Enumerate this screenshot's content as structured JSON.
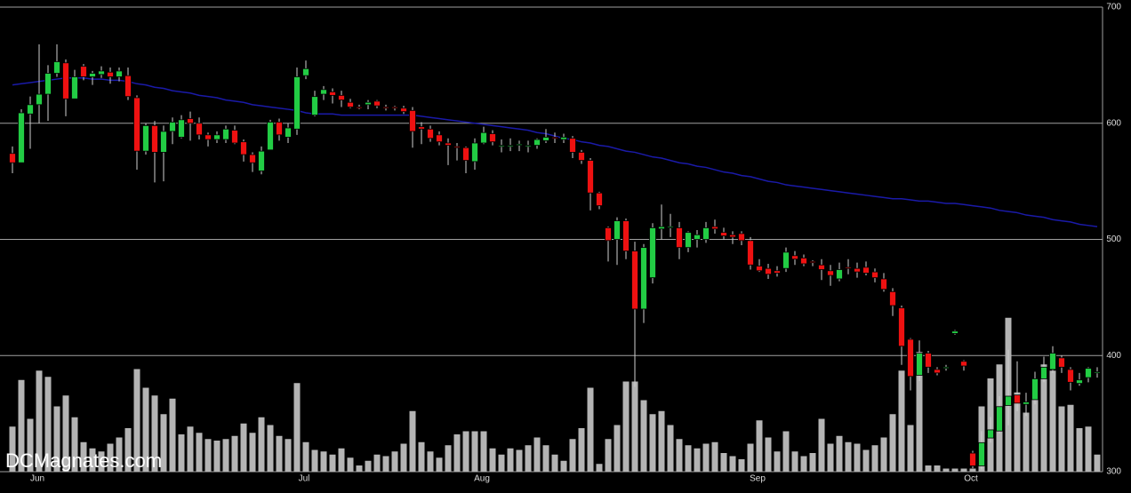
{
  "chart_data": {
    "type": "candlestick",
    "categories": [
      null,
      null,
      null,
      "Jun",
      null,
      null,
      null,
      null,
      null,
      null,
      null,
      null,
      null,
      null,
      null,
      null,
      null,
      null,
      null,
      null,
      null,
      null,
      null,
      null,
      null,
      null,
      null,
      null,
      null,
      null,
      null,
      null,
      null,
      "Jul",
      null,
      null,
      null,
      null,
      null,
      null,
      null,
      null,
      null,
      null,
      null,
      null,
      null,
      null,
      null,
      null,
      null,
      null,
      null,
      "Aug",
      null,
      null,
      null,
      null,
      null,
      null,
      null,
      null,
      null,
      null,
      null,
      null,
      null,
      null,
      null,
      null,
      null,
      null,
      null,
      null,
      null,
      null,
      null,
      null,
      null,
      null,
      null,
      null,
      null,
      null,
      "Sep",
      null,
      null,
      null,
      null,
      null,
      null,
      null,
      null,
      null,
      null,
      null,
      null,
      null,
      null,
      null,
      null,
      null,
      null,
      null,
      null,
      null,
      null,
      null,
      "Oct",
      null,
      null,
      null,
      null,
      null,
      null,
      null,
      null,
      null,
      null,
      null,
      null,
      null,
      null
    ],
    "open": [
      574,
      566,
      608,
      616,
      625,
      643,
      652,
      621,
      649,
      640,
      642,
      644,
      640,
      641,
      622,
      576,
      598,
      575,
      593,
      588,
      604,
      600,
      590,
      586,
      586,
      594,
      584,
      573,
      559,
      577,
      601,
      588,
      595,
      641,
      607,
      625,
      627,
      624,
      618,
      614,
      616,
      619,
      614,
      614,
      613,
      611,
      597,
      595,
      590,
      583,
      580,
      579,
      567,
      583,
      591,
      580,
      580,
      581,
      580,
      581,
      585,
      588,
      586,
      587,
      575,
      568,
      540,
      510,
      500,
      516,
      490,
      440,
      467,
      509,
      510,
      510,
      493,
      500,
      500,
      511,
      506,
      504,
      505,
      499,
      477,
      475,
      473,
      475,
      486,
      484,
      481,
      478,
      473,
      466,
      476,
      475,
      476,
      472,
      466,
      455,
      441,
      414,
      383,
      402,
      388,
      389,
      419,
      395,
      316,
      305,
      329,
      335,
      357,
      366,
      358,
      362,
      380,
      388,
      398,
      388,
      376,
      381,
      385
    ],
    "high": [
      580,
      612,
      623,
      668,
      650,
      668,
      655,
      646,
      651,
      645,
      649,
      648,
      648,
      648,
      624,
      600,
      602,
      598,
      605,
      607,
      610,
      605,
      592,
      593,
      598,
      598,
      586,
      575,
      580,
      603,
      604,
      600,
      648,
      654,
      628,
      632,
      630,
      628,
      621,
      616,
      620,
      620,
      616,
      615,
      615,
      614,
      601,
      598,
      593,
      587,
      583,
      580,
      587,
      597,
      594,
      586,
      587,
      585,
      585,
      587,
      595,
      592,
      591,
      589,
      577,
      570,
      541,
      511,
      519,
      518,
      498,
      496,
      514,
      530,
      522,
      515,
      507,
      508,
      515,
      517,
      510,
      507,
      507,
      502,
      483,
      479,
      477,
      493,
      490,
      487,
      482,
      483,
      478,
      480,
      483,
      480,
      481,
      475,
      471,
      458,
      443,
      415,
      413,
      404,
      390,
      392,
      422,
      396,
      318,
      335,
      347,
      365,
      405,
      395,
      368,
      386,
      399,
      408,
      400,
      390,
      385,
      390,
      390
    ],
    "low": [
      557,
      566,
      578,
      600,
      602,
      640,
      606,
      625,
      637,
      633,
      639,
      634,
      636,
      620,
      560,
      573,
      549,
      550,
      582,
      587,
      585,
      586,
      580,
      583,
      583,
      582,
      567,
      558,
      556,
      577,
      585,
      583,
      590,
      638,
      606,
      620,
      617,
      614,
      613,
      612,
      612,
      613,
      611,
      611,
      608,
      579,
      582,
      584,
      581,
      564,
      568,
      557,
      560,
      582,
      581,
      575,
      576,
      576,
      575,
      578,
      583,
      583,
      583,
      570,
      565,
      525,
      526,
      481,
      478,
      483,
      373,
      428,
      462,
      500,
      502,
      483,
      489,
      493,
      497,
      505,
      500,
      496,
      495,
      474,
      472,
      466,
      468,
      472,
      478,
      477,
      477,
      465,
      460,
      464,
      470,
      467,
      469,
      463,
      455,
      434,
      392,
      370,
      378,
      385,
      383,
      387,
      418,
      387,
      303,
      302,
      325,
      333,
      340,
      352,
      348,
      358,
      377,
      385,
      385,
      370,
      374,
      377,
      381
    ],
    "close": [
      566,
      609,
      616,
      625,
      643,
      653,
      621,
      640,
      640,
      643,
      645,
      640,
      645,
      623,
      576,
      598,
      575,
      593,
      601,
      603,
      600,
      590,
      586,
      590,
      595,
      583,
      573,
      566,
      576,
      601,
      590,
      596,
      640,
      647,
      623,
      629,
      624,
      620,
      614,
      613,
      618,
      615,
      613,
      613,
      610,
      593,
      595,
      587,
      584,
      581,
      579,
      568,
      583,
      592,
      584,
      581,
      581,
      582,
      581,
      586,
      588,
      587,
      588,
      575,
      568,
      540,
      529,
      499,
      516,
      490,
      440,
      493,
      510,
      511,
      511,
      493,
      506,
      504,
      510,
      509,
      503,
      502,
      499,
      478,
      473,
      470,
      471,
      489,
      483,
      479,
      480,
      474,
      469,
      474,
      475,
      472,
      471,
      467,
      457,
      443,
      408,
      382,
      402,
      390,
      385,
      390,
      421,
      391,
      305,
      325,
      336,
      356,
      365,
      359,
      360,
      380,
      390,
      402,
      390,
      377,
      379,
      389,
      386
    ],
    "volume": [
      29,
      59,
      34,
      65,
      61,
      42,
      49,
      35,
      19,
      15,
      13,
      18,
      22,
      28,
      66,
      54,
      49,
      37,
      47,
      24,
      29,
      25,
      21,
      20,
      21,
      23,
      31,
      25,
      35,
      30,
      23,
      21,
      57,
      19,
      14,
      13,
      11,
      15,
      9,
      4,
      7,
      11,
      10,
      13,
      18,
      39,
      19,
      13,
      9,
      17,
      24,
      26,
      26,
      26,
      15,
      11,
      15,
      14,
      17,
      22,
      17,
      11,
      7,
      21,
      28,
      54,
      5,
      21,
      30,
      58,
      58,
      46,
      37,
      39,
      30,
      21,
      17,
      15,
      18,
      19,
      12,
      10,
      8,
      18,
      33,
      22,
      13,
      26,
      13,
      10,
      12,
      34,
      18,
      23,
      19,
      18,
      14,
      17,
      22,
      37,
      65,
      30,
      77,
      4,
      4,
      2,
      2,
      2,
      2,
      42,
      60,
      69,
      99,
      51,
      38,
      50,
      69,
      65,
      42,
      43,
      28,
      29,
      11
    ],
    "ma": [
      633,
      634,
      635,
      636,
      637,
      638,
      639,
      639,
      639,
      638,
      638,
      637,
      637,
      636,
      634,
      633,
      631,
      630,
      628,
      627,
      626,
      624,
      623,
      622,
      620,
      619,
      618,
      616,
      615,
      614,
      613,
      612,
      611,
      609,
      608,
      608,
      608,
      607,
      607,
      607,
      607,
      607,
      607,
      607,
      607,
      607,
      606,
      605,
      604,
      603,
      602,
      601,
      600,
      599,
      598,
      597,
      596,
      595,
      594,
      592,
      591,
      589,
      587,
      586,
      584,
      583,
      581,
      580,
      578,
      576,
      575,
      573,
      571,
      570,
      568,
      566,
      565,
      563,
      562,
      560,
      558,
      557,
      555,
      554,
      552,
      550,
      549,
      547,
      546,
      545,
      544,
      543,
      542,
      541,
      540,
      539,
      538,
      537,
      536,
      535,
      535,
      534,
      533,
      533,
      532,
      531,
      531,
      530,
      529,
      528,
      527,
      525,
      524,
      523,
      521,
      520,
      519,
      517,
      516,
      515,
      513,
      512,
      511
    ],
    "up_color": "#22cc44",
    "down_color": "#ee1111",
    "volume_color": "#b4b4b4",
    "ma_color": "#1a1aa8",
    "ylim": [
      300,
      700
    ],
    "yticks": [
      300,
      400,
      500,
      600,
      700
    ],
    "volume_lim": [
      0,
      100
    ],
    "grid": true,
    "watermark": "DCMagnates.com"
  }
}
